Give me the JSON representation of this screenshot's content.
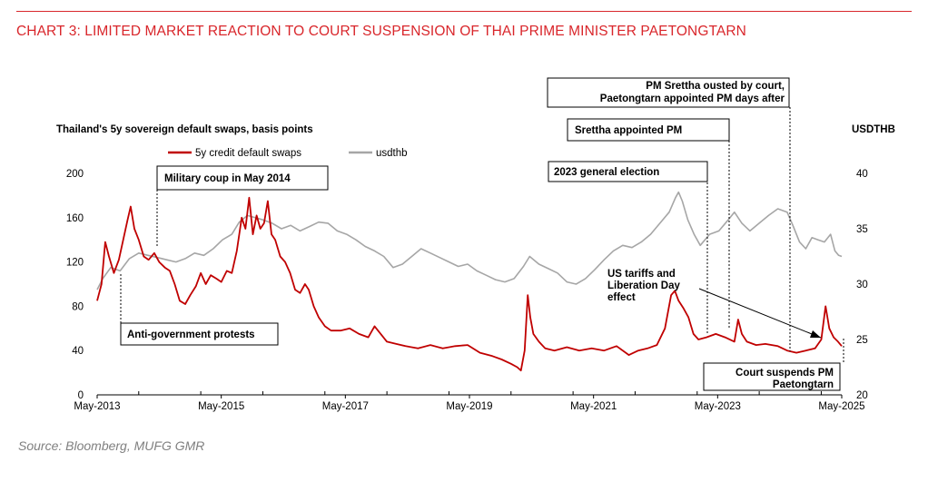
{
  "title": "CHART 3: LIMITED MARKET REACTION TO COURT SUSPENSION OF THAI PRIME MINISTER PAETONGTARN",
  "source": "Source: Bloomberg, MUFG GMR",
  "colors": {
    "title": "#d9262b",
    "cds": "#c00000",
    "usdthb": "#a6a6a6"
  },
  "chart_data": {
    "type": "line",
    "y_left_title": "Thailand's 5y sovereign default swaps, basis points",
    "y_right_title": "USDTHB",
    "y_left_range": [
      0,
      200
    ],
    "y_right_range": [
      20,
      40
    ],
    "y_left_ticks": [
      "0",
      "40",
      "80",
      "120",
      "160",
      "200"
    ],
    "y_right_ticks": [
      "20",
      "25",
      "30",
      "35",
      "40"
    ],
    "x_range": [
      2013.33,
      2025.33
    ],
    "x_ticks": [
      {
        "x": 2013.33,
        "label": "May-2013"
      },
      {
        "x": 2015.33,
        "label": "May-2015"
      },
      {
        "x": 2017.33,
        "label": "May-2017"
      },
      {
        "x": 2019.33,
        "label": "May-2019"
      },
      {
        "x": 2021.33,
        "label": "May-2021"
      },
      {
        "x": 2023.33,
        "label": "May-2023"
      },
      {
        "x": 2025.33,
        "label": "May-2025"
      }
    ],
    "grid": false,
    "legend_position": "top-left",
    "series": [
      {
        "name": "5y credit default swaps",
        "axis": "left",
        "color": "#c00000",
        "points": [
          [
            2013.33,
            85
          ],
          [
            2013.4,
            100
          ],
          [
            2013.46,
            138
          ],
          [
            2013.52,
            125
          ],
          [
            2013.6,
            110
          ],
          [
            2013.68,
            122
          ],
          [
            2013.75,
            140
          ],
          [
            2013.82,
            158
          ],
          [
            2013.87,
            170
          ],
          [
            2013.93,
            150
          ],
          [
            2014.0,
            140
          ],
          [
            2014.08,
            125
          ],
          [
            2014.16,
            122
          ],
          [
            2014.25,
            128
          ],
          [
            2014.33,
            120
          ],
          [
            2014.42,
            115
          ],
          [
            2014.5,
            112
          ],
          [
            2014.58,
            100
          ],
          [
            2014.66,
            85
          ],
          [
            2014.75,
            82
          ],
          [
            2014.83,
            90
          ],
          [
            2014.92,
            98
          ],
          [
            2015.0,
            110
          ],
          [
            2015.08,
            100
          ],
          [
            2015.16,
            108
          ],
          [
            2015.25,
            105
          ],
          [
            2015.33,
            102
          ],
          [
            2015.42,
            112
          ],
          [
            2015.5,
            110
          ],
          [
            2015.58,
            130
          ],
          [
            2015.66,
            160
          ],
          [
            2015.72,
            150
          ],
          [
            2015.78,
            178
          ],
          [
            2015.84,
            145
          ],
          [
            2015.9,
            162
          ],
          [
            2015.96,
            150
          ],
          [
            2016.02,
            155
          ],
          [
            2016.08,
            175
          ],
          [
            2016.14,
            145
          ],
          [
            2016.2,
            140
          ],
          [
            2016.28,
            125
          ],
          [
            2016.36,
            120
          ],
          [
            2016.44,
            110
          ],
          [
            2016.52,
            95
          ],
          [
            2016.6,
            92
          ],
          [
            2016.68,
            100
          ],
          [
            2016.74,
            95
          ],
          [
            2016.82,
            80
          ],
          [
            2016.9,
            70
          ],
          [
            2017.0,
            62
          ],
          [
            2017.1,
            58
          ],
          [
            2017.25,
            58
          ],
          [
            2017.4,
            60
          ],
          [
            2017.55,
            55
          ],
          [
            2017.7,
            52
          ],
          [
            2017.8,
            62
          ],
          [
            2017.9,
            55
          ],
          [
            2018.0,
            48
          ],
          [
            2018.15,
            46
          ],
          [
            2018.3,
            44
          ],
          [
            2018.5,
            42
          ],
          [
            2018.7,
            45
          ],
          [
            2018.9,
            42
          ],
          [
            2019.1,
            44
          ],
          [
            2019.3,
            45
          ],
          [
            2019.5,
            38
          ],
          [
            2019.7,
            35
          ],
          [
            2019.85,
            32
          ],
          [
            2020.0,
            28
          ],
          [
            2020.1,
            25
          ],
          [
            2020.16,
            22
          ],
          [
            2020.22,
            40
          ],
          [
            2020.27,
            90
          ],
          [
            2020.31,
            70
          ],
          [
            2020.36,
            55
          ],
          [
            2020.45,
            48
          ],
          [
            2020.55,
            42
          ],
          [
            2020.7,
            40
          ],
          [
            2020.9,
            43
          ],
          [
            2021.1,
            40
          ],
          [
            2021.3,
            42
          ],
          [
            2021.5,
            40
          ],
          [
            2021.7,
            44
          ],
          [
            2021.9,
            36
          ],
          [
            2022.05,
            40
          ],
          [
            2022.2,
            42
          ],
          [
            2022.35,
            45
          ],
          [
            2022.48,
            60
          ],
          [
            2022.58,
            90
          ],
          [
            2022.64,
            94
          ],
          [
            2022.7,
            85
          ],
          [
            2022.78,
            78
          ],
          [
            2022.86,
            70
          ],
          [
            2022.94,
            55
          ],
          [
            2023.02,
            50
          ],
          [
            2023.15,
            52
          ],
          [
            2023.3,
            55
          ],
          [
            2023.45,
            52
          ],
          [
            2023.6,
            48
          ],
          [
            2023.66,
            68
          ],
          [
            2023.72,
            55
          ],
          [
            2023.8,
            48
          ],
          [
            2023.95,
            45
          ],
          [
            2024.1,
            46
          ],
          [
            2024.3,
            44
          ],
          [
            2024.45,
            40
          ],
          [
            2024.6,
            38
          ],
          [
            2024.75,
            40
          ],
          [
            2024.9,
            42
          ],
          [
            2025.0,
            50
          ],
          [
            2025.07,
            80
          ],
          [
            2025.13,
            60
          ],
          [
            2025.2,
            52
          ],
          [
            2025.27,
            48
          ],
          [
            2025.33,
            44
          ]
        ]
      },
      {
        "name": "usdthb",
        "axis": "right",
        "color": "#a6a6a6",
        "points": [
          [
            2013.33,
            29.5
          ],
          [
            2013.42,
            30.5
          ],
          [
            2013.55,
            31.5
          ],
          [
            2013.7,
            31.2
          ],
          [
            2013.85,
            32.3
          ],
          [
            2014.0,
            32.8
          ],
          [
            2014.15,
            32.6
          ],
          [
            2014.3,
            32.4
          ],
          [
            2014.45,
            32.2
          ],
          [
            2014.6,
            32.0
          ],
          [
            2014.75,
            32.3
          ],
          [
            2014.9,
            32.8
          ],
          [
            2015.05,
            32.6
          ],
          [
            2015.2,
            33.2
          ],
          [
            2015.35,
            34.0
          ],
          [
            2015.5,
            34.5
          ],
          [
            2015.62,
            35.6
          ],
          [
            2015.75,
            36.2
          ],
          [
            2015.88,
            36.0
          ],
          [
            2016.0,
            35.8
          ],
          [
            2016.15,
            35.5
          ],
          [
            2016.3,
            35.0
          ],
          [
            2016.45,
            35.3
          ],
          [
            2016.6,
            34.8
          ],
          [
            2016.75,
            35.2
          ],
          [
            2016.9,
            35.6
          ],
          [
            2017.05,
            35.5
          ],
          [
            2017.2,
            34.8
          ],
          [
            2017.35,
            34.5
          ],
          [
            2017.5,
            34.0
          ],
          [
            2017.65,
            33.4
          ],
          [
            2017.8,
            33.0
          ],
          [
            2017.95,
            32.5
          ],
          [
            2018.1,
            31.5
          ],
          [
            2018.25,
            31.8
          ],
          [
            2018.4,
            32.5
          ],
          [
            2018.55,
            33.2
          ],
          [
            2018.7,
            32.8
          ],
          [
            2018.85,
            32.4
          ],
          [
            2019.0,
            32.0
          ],
          [
            2019.15,
            31.6
          ],
          [
            2019.3,
            31.8
          ],
          [
            2019.45,
            31.2
          ],
          [
            2019.6,
            30.8
          ],
          [
            2019.75,
            30.4
          ],
          [
            2019.9,
            30.2
          ],
          [
            2020.05,
            30.5
          ],
          [
            2020.2,
            31.6
          ],
          [
            2020.3,
            32.5
          ],
          [
            2020.45,
            31.8
          ],
          [
            2020.6,
            31.4
          ],
          [
            2020.75,
            31.0
          ],
          [
            2020.9,
            30.2
          ],
          [
            2021.05,
            30.0
          ],
          [
            2021.2,
            30.5
          ],
          [
            2021.35,
            31.3
          ],
          [
            2021.5,
            32.2
          ],
          [
            2021.65,
            33.0
          ],
          [
            2021.8,
            33.5
          ],
          [
            2021.95,
            33.3
          ],
          [
            2022.1,
            33.8
          ],
          [
            2022.25,
            34.5
          ],
          [
            2022.4,
            35.5
          ],
          [
            2022.55,
            36.5
          ],
          [
            2022.65,
            37.8
          ],
          [
            2022.7,
            38.3
          ],
          [
            2022.76,
            37.5
          ],
          [
            2022.85,
            35.8
          ],
          [
            2022.95,
            34.5
          ],
          [
            2023.05,
            33.5
          ],
          [
            2023.2,
            34.5
          ],
          [
            2023.35,
            34.8
          ],
          [
            2023.5,
            35.8
          ],
          [
            2023.6,
            36.5
          ],
          [
            2023.72,
            35.5
          ],
          [
            2023.85,
            34.8
          ],
          [
            2024.0,
            35.5
          ],
          [
            2024.15,
            36.2
          ],
          [
            2024.3,
            36.8
          ],
          [
            2024.45,
            36.5
          ],
          [
            2024.55,
            35.2
          ],
          [
            2024.65,
            33.8
          ],
          [
            2024.75,
            33.2
          ],
          [
            2024.85,
            34.2
          ],
          [
            2024.95,
            34.0
          ],
          [
            2025.05,
            33.8
          ],
          [
            2025.15,
            34.5
          ],
          [
            2025.22,
            33.0
          ],
          [
            2025.28,
            32.6
          ],
          [
            2025.33,
            32.5
          ]
        ]
      }
    ],
    "annotations": [
      {
        "key": "coup",
        "lines": [
          "Military coup in May 2014"
        ]
      },
      {
        "key": "protests",
        "lines": [
          "Anti-government protests"
        ]
      },
      {
        "key": "ousted",
        "lines": [
          "PM Srettha ousted by court,",
          "Paetongtarn appointed PM days after"
        ]
      },
      {
        "key": "srettha",
        "lines": [
          "Srettha appointed PM"
        ]
      },
      {
        "key": "election",
        "lines": [
          "2023 general election"
        ]
      },
      {
        "key": "tariffs",
        "lines": [
          "US tariffs and",
          "Liberation Day",
          "effect"
        ]
      },
      {
        "key": "suspend",
        "lines": [
          "Court suspends PM",
          "Paetongtarn"
        ]
      }
    ]
  }
}
